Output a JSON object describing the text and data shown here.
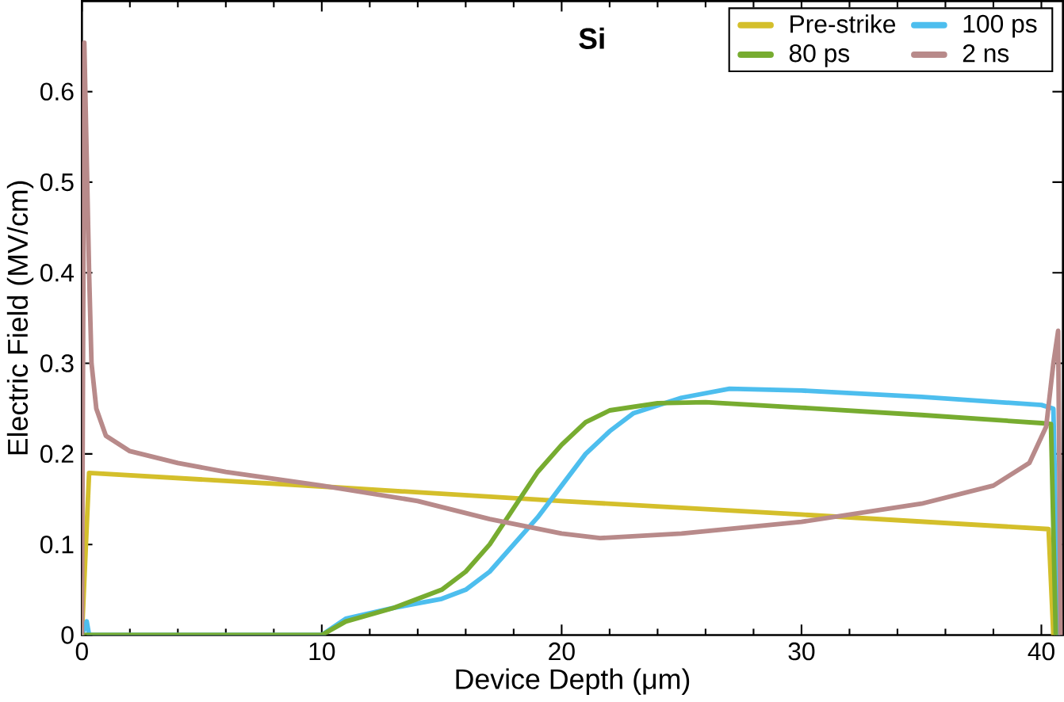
{
  "chart_data": {
    "type": "line",
    "xlabel": "Device Depth (μm)",
    "ylabel": "Electric Field (MV/cm)",
    "annotations": [
      "**Si**"
    ],
    "xlim": [
      0,
      40.9
    ],
    "ylim": [
      0,
      0.7
    ],
    "xticks": [
      0,
      10,
      20,
      30,
      40
    ],
    "yticks": [
      0,
      0.1,
      0.2,
      0.3,
      0.4,
      0.5,
      0.6
    ],
    "legend": "top right",
    "grid": false,
    "line_style": "solid",
    "marker": "none",
    "series": [
      {
        "name": "Pre-strike",
        "color": "#d4bf2b",
        "x": [
          0,
          0.3,
          10,
          20,
          30,
          40.3,
          40.5
        ],
        "values": [
          0,
          0.179,
          0.164,
          0.148,
          0.133,
          0.117,
          0
        ]
      },
      {
        "name": "100 ps",
        "color": "#4dbeee",
        "x": [
          0,
          0.2,
          0.3,
          10,
          11,
          13,
          15,
          16,
          17,
          18,
          19,
          20,
          21,
          22,
          23,
          25,
          27,
          30,
          35,
          40,
          40.5,
          40.7
        ],
        "values": [
          0,
          0.015,
          0,
          0,
          0.018,
          0.03,
          0.04,
          0.05,
          0.07,
          0.1,
          0.13,
          0.165,
          0.2,
          0.225,
          0.245,
          0.262,
          0.272,
          0.27,
          0.263,
          0.254,
          0.25,
          0
        ]
      },
      {
        "name": "80 ps",
        "color": "#77ac30",
        "x": [
          0,
          10,
          11,
          13,
          15,
          16,
          17,
          18,
          19,
          20,
          21,
          22,
          24,
          26,
          30,
          35,
          40,
          40.4,
          40.6
        ],
        "values": [
          0,
          0,
          0.015,
          0.03,
          0.05,
          0.07,
          0.1,
          0.14,
          0.18,
          0.21,
          0.235,
          0.248,
          0.256,
          0.257,
          0.251,
          0.243,
          0.234,
          0.233,
          0
        ]
      },
      {
        "name": "2 ns",
        "color": "#b88a8a",
        "x": [
          0,
          0.1,
          0.3,
          0.4,
          0.6,
          1,
          2,
          4,
          6,
          10,
          14,
          17,
          20,
          21.6,
          25,
          30,
          35,
          38,
          39.5,
          40.2,
          40.5,
          40.7,
          40.8
        ],
        "values": [
          0,
          0.654,
          0.4,
          0.3,
          0.25,
          0.22,
          0.203,
          0.19,
          0.18,
          0.165,
          0.148,
          0.128,
          0.112,
          0.107,
          0.112,
          0.125,
          0.145,
          0.165,
          0.19,
          0.23,
          0.3,
          0.336,
          0
        ]
      }
    ]
  }
}
